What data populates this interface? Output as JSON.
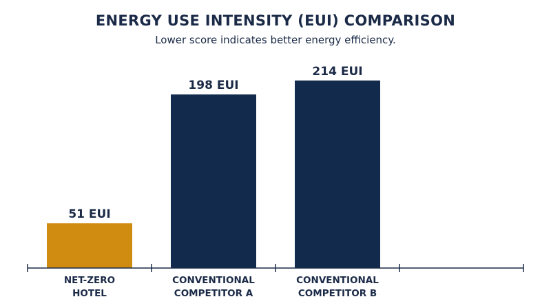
{
  "colors": {
    "text": "#1b2a47",
    "axis": "#1b2a47",
    "highlight": "#d08c10",
    "primary": "#122a4c"
  },
  "chart_data": {
    "type": "bar",
    "title": "ENERGY USE INTENSITY (EUI) COMPARISON",
    "subtitle": "Lower score indicates better energy efficiency.",
    "xlabel": "",
    "ylabel": "",
    "unit": "EUI",
    "grid": false,
    "legend": "none",
    "ylim": [
      0,
      250
    ],
    "categories": [
      [
        "NET-ZERO",
        "HOTEL"
      ],
      [
        "CONVENTIONAL",
        "COMPETITOR A"
      ],
      [
        "CONVENTIONAL",
        "COMPETITOR B"
      ],
      [
        "",
        ""
      ]
    ],
    "values": [
      51,
      198,
      214,
      null
    ],
    "value_labels": [
      "51 EUI",
      "198 EUI",
      "214 EUI",
      ""
    ],
    "bar_colors": [
      "#d08c10",
      "#122a4c",
      "#122a4c",
      "#122a4c"
    ]
  }
}
